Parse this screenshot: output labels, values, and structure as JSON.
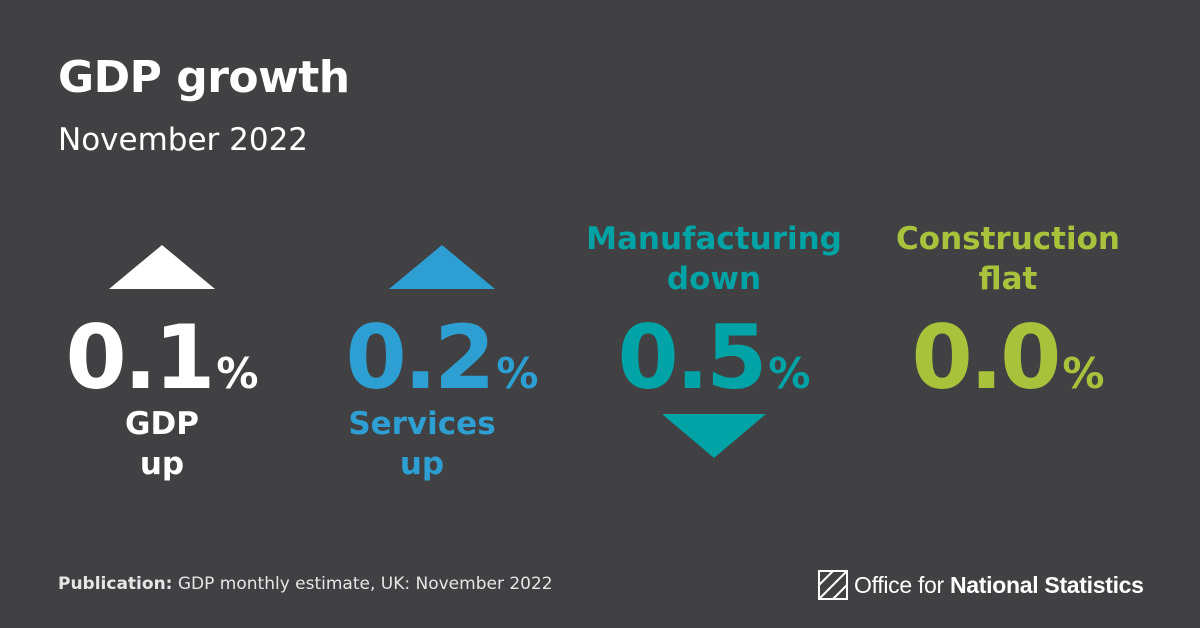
{
  "header": {
    "title": "GDP growth",
    "subtitle": "November 2022"
  },
  "stats": [
    {
      "value": "0.1",
      "unit": "%",
      "label_line1": "GDP",
      "label_line2": "up",
      "direction": "up",
      "color": "#ffffff"
    },
    {
      "value": "0.2",
      "unit": "%",
      "label_line1": "Services",
      "label_line2": "up",
      "direction": "up",
      "color": "#2d9fd3"
    },
    {
      "value": "0.5",
      "unit": "%",
      "label_line1": "Manufacturing",
      "label_line2": "down",
      "direction": "down",
      "color": "#00a3a6"
    },
    {
      "value": "0.0",
      "unit": "%",
      "label_line1": "Construction",
      "label_line2": "flat",
      "direction": "flat",
      "color": "#a8c23c"
    }
  ],
  "footer": {
    "publication_label": "Publication:",
    "publication_text": "GDP monthly estimate, UK: November 2022"
  },
  "logo": {
    "text_regular": "Office for",
    "text_bold": "National Statistics",
    "icon": "ons-logo-icon"
  }
}
